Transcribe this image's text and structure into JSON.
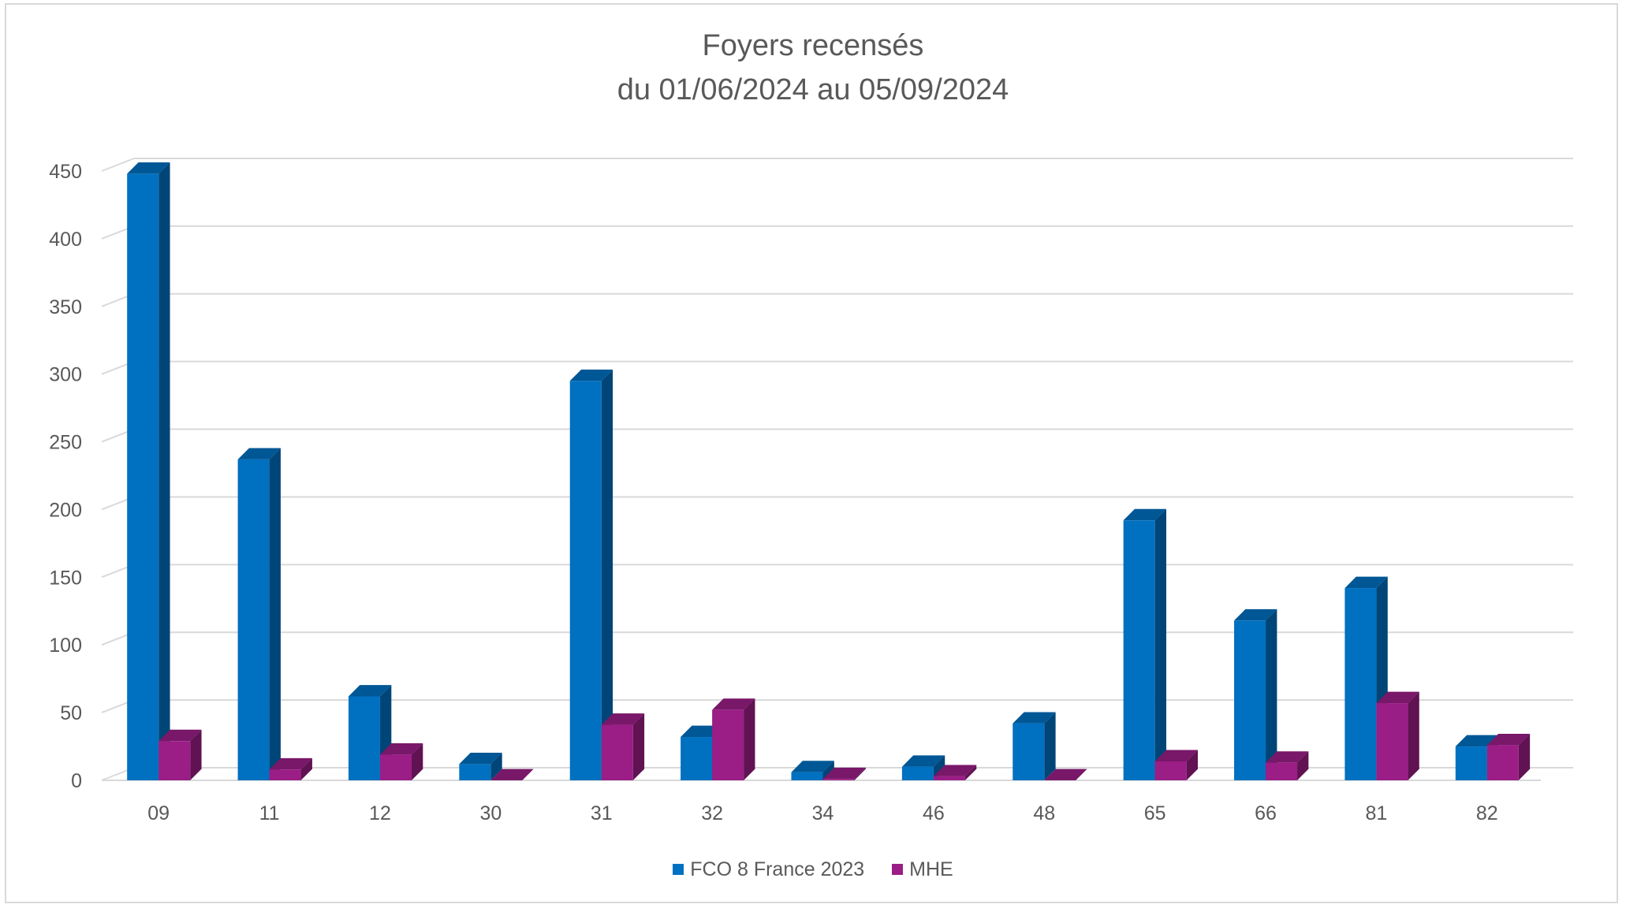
{
  "chart_data": {
    "type": "bar",
    "title": "Foyers recensés",
    "subtitle": "du 01/06/2024 au 05/09/2024",
    "categories": [
      "09",
      "11",
      "12",
      "30",
      "31",
      "32",
      "34",
      "46",
      "48",
      "65",
      "66",
      "81",
      "82"
    ],
    "series": [
      {
        "name": "FCO 8 France 2023",
        "color": "#0070c0",
        "values": [
          448,
          237,
          62,
          12,
          295,
          32,
          6,
          10,
          42,
          192,
          118,
          142,
          25
        ]
      },
      {
        "name": "MHE",
        "color": "#9b1d86",
        "values": [
          29,
          8,
          19,
          0,
          41,
          52,
          1,
          3,
          0,
          14,
          13,
          57,
          26
        ]
      }
    ],
    "ylim": [
      0,
      450
    ],
    "yticks": [
      0,
      50,
      100,
      150,
      200,
      250,
      300,
      350,
      400,
      450
    ],
    "ytick_labels": [
      "0",
      "50",
      "100",
      "150",
      "200",
      "250",
      "300",
      "350",
      "400",
      "450"
    ],
    "xlabel": "",
    "ylabel": "",
    "grid": true,
    "legend_position": "bottom",
    "style": "3d-clustered-column"
  }
}
